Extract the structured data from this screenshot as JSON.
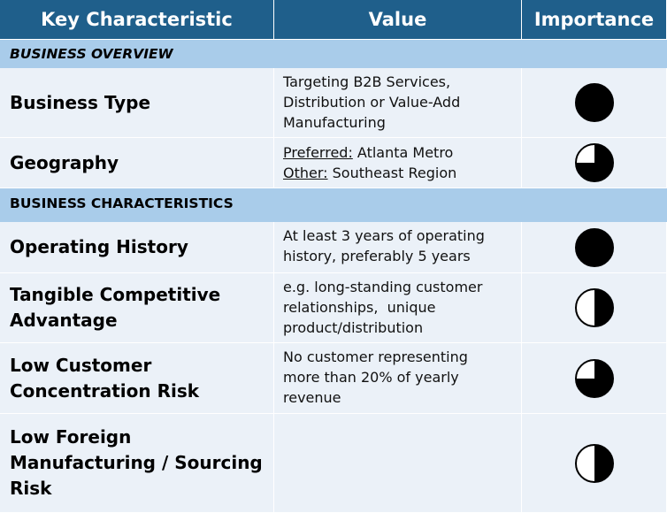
{
  "headers": {
    "key": "Key Characteristic",
    "value": "Value",
    "importance": "Importance"
  },
  "sections": [
    {
      "title": "BUSINESS OVERVIEW",
      "rows": [
        {
          "key": "Business Type",
          "value_lines": [
            "Targeting B2B Services,",
            "Distribution or Value-Add",
            "Manufacturing"
          ],
          "importance": 1.0
        },
        {
          "key": "Geography",
          "value_pairs": [
            {
              "label": "Preferred:",
              "text": " Atlanta Metro"
            },
            {
              "label": "Other:",
              "text": " Southeast Region"
            }
          ],
          "importance": 0.75
        }
      ]
    },
    {
      "title": "BUSINESS CHARACTERISTICS",
      "rows": [
        {
          "key": "Operating History",
          "value_lines": [
            "At least 3 years of operating",
            "history, preferably 5 years"
          ],
          "importance": 1.0
        },
        {
          "key_lines": [
            "Tangible Competitive",
            "Advantage"
          ],
          "value_lines": [
            "e.g. long-standing customer",
            "relationships,  unique",
            "product/distribution"
          ],
          "importance": 0.5
        },
        {
          "key_lines": [
            "Low Customer",
            "Concentration Risk"
          ],
          "value_lines": [
            "No customer representing",
            "more than 20% of yearly",
            "revenue"
          ],
          "importance": 0.75
        },
        {
          "key_lines": [
            "Low Foreign",
            "Manufacturing / Sourcing",
            "Risk"
          ],
          "value_lines": [],
          "importance": 0.5
        }
      ]
    }
  ],
  "colors": {
    "header_bg": "#1f5f8b",
    "section_bg": "#a9ccea",
    "row_bg": "#ebf1f8",
    "harvey_ball": "#000000"
  },
  "importance_icon": "harvey-ball-icon"
}
